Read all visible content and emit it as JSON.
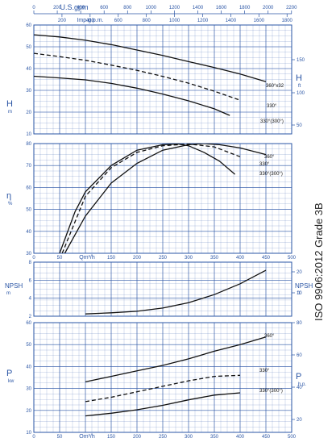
{
  "colors": {
    "grid": "#2a55a5",
    "curve": "#111111",
    "background": "#ffffff"
  },
  "note": "ISO 9906:2012 Grade 3B",
  "top_axes": {
    "usgpm": {
      "label": "U.S.gpm",
      "ticks": [
        "0",
        "200",
        "400",
        "600",
        "800",
        "1000",
        "1200",
        "1400",
        "1600",
        "1800",
        "2000",
        "2200"
      ]
    },
    "impgpm": {
      "label": "Imp.g.p.m.",
      "ticks": [
        "200",
        "400",
        "600",
        "800",
        "1000",
        "1200",
        "1400",
        "1600",
        "1800"
      ]
    }
  },
  "bottom_axis": {
    "label": "Qm³/h",
    "ticks": [
      "0",
      "50",
      "100",
      "150",
      "200",
      "250",
      "300",
      "350",
      "400",
      "450",
      "500"
    ]
  },
  "chart_data": [
    {
      "type": "line",
      "id": "head",
      "ylabel_left": {
        "symbol": "H",
        "unit": "m"
      },
      "ylabel_right": {
        "symbol": "H",
        "unit": "ft"
      },
      "xlim": [
        0,
        500
      ],
      "ylim": [
        10,
        60
      ],
      "yticks_left": [
        "10",
        "20",
        "30",
        "40",
        "50",
        "60"
      ],
      "yticks_right": [
        "50",
        "100",
        "150"
      ],
      "series": [
        {
          "name": "360°x32",
          "style": "solid",
          "x": [
            0,
            50,
            100,
            150,
            200,
            250,
            300,
            350,
            400,
            450
          ],
          "y": [
            55.5,
            54.5,
            53,
            51,
            48.5,
            46,
            43.2,
            40.5,
            37.5,
            34
          ]
        },
        {
          "name": "330°",
          "style": "dashed",
          "x": [
            0,
            50,
            100,
            150,
            200,
            250,
            300,
            350,
            400
          ],
          "y": [
            47,
            45.5,
            43.8,
            41.6,
            39.2,
            36.4,
            33.3,
            29.6,
            25.5
          ]
        },
        {
          "name": "330°(300°)",
          "style": "solid",
          "x": [
            0,
            50,
            100,
            150,
            200,
            250,
            300,
            350,
            380
          ],
          "y": [
            36.5,
            35.7,
            34.8,
            33.2,
            31,
            28.3,
            25.2,
            21.5,
            18.5
          ]
        }
      ]
    },
    {
      "type": "line",
      "id": "efficiency",
      "ylabel_left": {
        "symbol": "η",
        "unit": "%"
      },
      "xlim": [
        0,
        500
      ],
      "ylim": [
        30,
        80
      ],
      "yticks_left": [
        "30",
        "40",
        "50",
        "60",
        "70",
        "80"
      ],
      "series": [
        {
          "name": "360°",
          "style": "solid",
          "x": [
            60,
            100,
            150,
            200,
            250,
            300,
            330,
            360,
            400,
            450
          ],
          "y": [
            30,
            47,
            62,
            71,
            77,
            79.5,
            80,
            79.5,
            78,
            75
          ]
        },
        {
          "name": "330°",
          "style": "dashed",
          "x": [
            55,
            100,
            150,
            200,
            250,
            300,
            350,
            400
          ],
          "y": [
            30,
            56,
            69,
            76,
            79,
            79.8,
            78.5,
            74
          ]
        },
        {
          "name": "330°(300°)",
          "style": "solid",
          "x": [
            50,
            80,
            100,
            150,
            200,
            250,
            280,
            300,
            330,
            360,
            390
          ],
          "y": [
            30,
            49,
            58,
            70,
            77,
            79.5,
            79.8,
            79,
            76,
            72,
            66
          ]
        }
      ]
    },
    {
      "type": "line",
      "id": "npsh",
      "ylabel_left": {
        "symbol": "NPSH",
        "unit": "m"
      },
      "ylabel_right": {
        "symbol": "NPSH",
        "unit": "ft"
      },
      "xlim": [
        0,
        500
      ],
      "ylim": [
        2,
        8
      ],
      "yticks_left": [
        "2",
        "4",
        "6",
        "8"
      ],
      "yticks_right": [
        "10",
        "20"
      ],
      "series": [
        {
          "name": "NPSH",
          "style": "solid",
          "x": [
            100,
            150,
            200,
            250,
            300,
            350,
            400,
            450
          ],
          "y": [
            2.25,
            2.38,
            2.55,
            2.9,
            3.5,
            4.4,
            5.6,
            7.1
          ]
        }
      ]
    },
    {
      "type": "line",
      "id": "power",
      "ylabel_left": {
        "symbol": "P",
        "unit": "kw"
      },
      "ylabel_right": {
        "symbol": "P",
        "unit": "h.p."
      },
      "xlim": [
        0,
        500
      ],
      "ylim": [
        10,
        60
      ],
      "yticks_left": [
        "10",
        "20",
        "30",
        "40",
        "50",
        "60"
      ],
      "yticks_right": [
        "20",
        "40",
        "60",
        "80"
      ],
      "series": [
        {
          "name": "360°",
          "style": "solid",
          "x": [
            100,
            150,
            200,
            250,
            300,
            350,
            400,
            450
          ],
          "y": [
            33,
            35.5,
            38,
            40.5,
            43.5,
            47,
            50,
            53.5
          ]
        },
        {
          "name": "330°",
          "style": "dashed",
          "x": [
            100,
            150,
            200,
            250,
            300,
            350,
            400
          ],
          "y": [
            24,
            26,
            28.5,
            31,
            33.5,
            35.5,
            36
          ]
        },
        {
          "name": "330°(300°)",
          "style": "solid",
          "x": [
            100,
            150,
            200,
            250,
            300,
            350,
            400
          ],
          "y": [
            17.5,
            18.7,
            20.3,
            22.3,
            24.8,
            27,
            28
          ]
        }
      ]
    }
  ]
}
